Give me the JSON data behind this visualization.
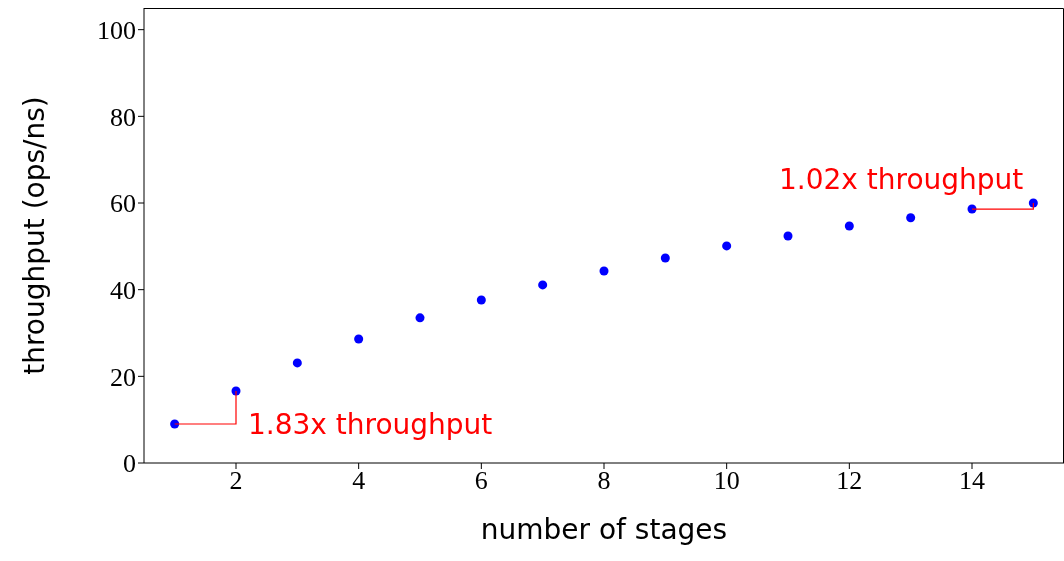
{
  "chart_data": {
    "type": "scatter",
    "xlabel": "number of stages",
    "ylabel": "throughput (ops/ns)",
    "x": [
      1,
      2,
      3,
      4,
      5,
      6,
      7,
      8,
      9,
      10,
      11,
      12,
      13,
      14,
      15
    ],
    "series": [
      {
        "color": "#0000ff",
        "values": [
          9.0,
          16.6,
          23.1,
          28.6,
          33.5,
          37.6,
          41.1,
          44.3,
          47.3,
          50.1,
          52.4,
          54.7,
          56.6,
          58.6,
          60.0
        ]
      }
    ],
    "xlim": [
      0.5,
      15.5
    ],
    "xticks": [
      2,
      4,
      6,
      8,
      10,
      12,
      14
    ],
    "ylim": [
      0,
      105
    ],
    "yticks": [
      0,
      20,
      40,
      60,
      80,
      100
    ],
    "grid": false,
    "legend": false,
    "marker": "circle",
    "annotations": [
      {
        "text": "1.83x throughput",
        "x": 2,
        "y": 16.6
      },
      {
        "text": "1.02x throughput",
        "x": 15,
        "y": 60.0
      }
    ]
  }
}
